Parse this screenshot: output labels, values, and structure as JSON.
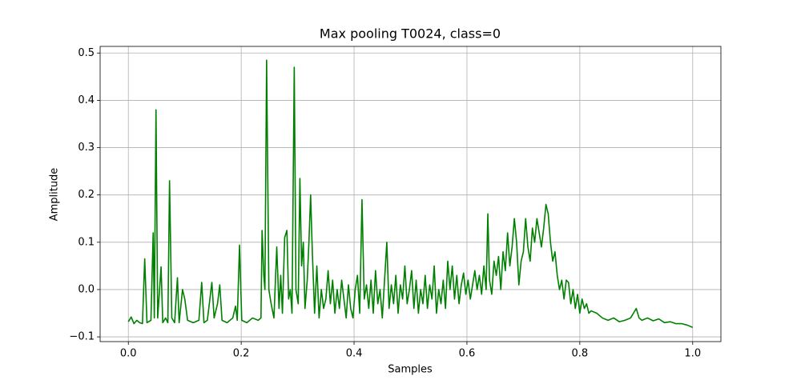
{
  "chart_data": {
    "type": "line",
    "title": "Max pooling T0024, class=0",
    "xlabel": "Samples",
    "ylabel": "Amplitude",
    "color": "#008000",
    "grid": true,
    "xlim": [
      -0.05,
      1.05
    ],
    "ylim": [
      -0.11,
      0.514
    ],
    "xticks": [
      {
        "value": 0,
        "label": "0.0"
      },
      0.2,
      0.4,
      0.6,
      0.8,
      {
        "value": 1,
        "label": "1.0"
      }
    ],
    "yticks": [
      {
        "value": -0.1,
        "label": "−0.1"
      },
      {
        "value": 0,
        "label": "0.0"
      },
      0.1,
      0.2,
      0.3,
      0.4,
      0.5
    ],
    "x": [
      0,
      0.005,
      0.01,
      0.015,
      0.02,
      0.025,
      0.029,
      0.033,
      0.04,
      0.044,
      0.046,
      0.049,
      0.052,
      0.058,
      0.061,
      0.066,
      0.07,
      0.073,
      0.077,
      0.082,
      0.087,
      0.09,
      0.096,
      0.1,
      0.105,
      0.115,
      0.125,
      0.13,
      0.134,
      0.14,
      0.148,
      0.152,
      0.158,
      0.162,
      0.166,
      0.175,
      0.185,
      0.19,
      0.193,
      0.197,
      0.201,
      0.21,
      0.22,
      0.23,
      0.235,
      0.237,
      0.24,
      0.242,
      0.245,
      0.249,
      0.253,
      0.258,
      0.263,
      0.267,
      0.27,
      0.273,
      0.277,
      0.281,
      0.284,
      0.287,
      0.29,
      0.294,
      0.297,
      0.301,
      0.304,
      0.307,
      0.31,
      0.313,
      0.317,
      0.32,
      0.323,
      0.326,
      0.33,
      0.334,
      0.338,
      0.342,
      0.346,
      0.35,
      0.354,
      0.358,
      0.362,
      0.366,
      0.37,
      0.374,
      0.378,
      0.382,
      0.386,
      0.39,
      0.394,
      0.398,
      0.402,
      0.406,
      0.41,
      0.414,
      0.418,
      0.422,
      0.426,
      0.43,
      0.434,
      0.438,
      0.442,
      0.446,
      0.45,
      0.454,
      0.458,
      0.462,
      0.466,
      0.47,
      0.474,
      0.478,
      0.482,
      0.486,
      0.49,
      0.494,
      0.498,
      0.502,
      0.506,
      0.51,
      0.514,
      0.518,
      0.522,
      0.526,
      0.53,
      0.534,
      0.538,
      0.542,
      0.546,
      0.55,
      0.554,
      0.558,
      0.562,
      0.566,
      0.57,
      0.574,
      0.578,
      0.582,
      0.586,
      0.59,
      0.594,
      0.598,
      0.602,
      0.606,
      0.61,
      0.614,
      0.618,
      0.622,
      0.626,
      0.63,
      0.634,
      0.637,
      0.64,
      0.644,
      0.648,
      0.652,
      0.656,
      0.66,
      0.664,
      0.668,
      0.672,
      0.676,
      0.68,
      0.684,
      0.688,
      0.692,
      0.696,
      0.7,
      0.704,
      0.708,
      0.712,
      0.716,
      0.72,
      0.724,
      0.728,
      0.732,
      0.736,
      0.74,
      0.744,
      0.748,
      0.752,
      0.756,
      0.76,
      0.764,
      0.768,
      0.772,
      0.776,
      0.78,
      0.784,
      0.788,
      0.792,
      0.796,
      0.8,
      0.804,
      0.808,
      0.812,
      0.816,
      0.82,
      0.83,
      0.84,
      0.85,
      0.86,
      0.87,
      0.88,
      0.89,
      0.9,
      0.905,
      0.91,
      0.92,
      0.93,
      0.94,
      0.95,
      0.96,
      0.97,
      0.98,
      0.99,
      1.0
    ],
    "values": [
      -0.068,
      -0.058,
      -0.072,
      -0.065,
      -0.07,
      -0.072,
      0.065,
      -0.07,
      -0.065,
      0.12,
      -0.06,
      0.38,
      -0.06,
      0.048,
      -0.07,
      -0.06,
      -0.07,
      0.23,
      -0.06,
      -0.07,
      0.025,
      -0.07,
      0.0,
      -0.02,
      -0.065,
      -0.07,
      -0.065,
      0.015,
      -0.07,
      -0.065,
      0.015,
      -0.06,
      -0.03,
      0.01,
      -0.065,
      -0.07,
      -0.06,
      -0.035,
      -0.065,
      0.094,
      -0.065,
      -0.07,
      -0.06,
      -0.065,
      -0.06,
      0.125,
      0.03,
      0.0,
      0.485,
      0.0,
      -0.03,
      -0.06,
      0.09,
      -0.04,
      0.03,
      -0.05,
      0.11,
      0.125,
      -0.02,
      0.0,
      -0.05,
      0.47,
      0.0,
      -0.03,
      0.235,
      0.05,
      0.1,
      -0.04,
      0.02,
      0.1,
      0.2,
      0.08,
      -0.05,
      0.05,
      -0.06,
      0.0,
      -0.04,
      -0.02,
      0.04,
      -0.03,
      0.02,
      -0.05,
      0.0,
      -0.04,
      0.02,
      -0.02,
      -0.06,
      0.01,
      -0.04,
      -0.06,
      0.0,
      0.03,
      -0.05,
      0.19,
      -0.02,
      0.01,
      -0.04,
      0.02,
      -0.05,
      0.04,
      -0.03,
      0.0,
      -0.06,
      0.02,
      0.1,
      -0.04,
      0.01,
      -0.03,
      0.03,
      -0.05,
      0.01,
      -0.02,
      0.05,
      -0.03,
      0.0,
      0.04,
      -0.04,
      0.02,
      -0.05,
      0.0,
      -0.03,
      0.03,
      -0.04,
      0.01,
      -0.02,
      0.05,
      -0.05,
      0.0,
      -0.03,
      0.02,
      -0.04,
      0.06,
      0.0,
      0.05,
      -0.02,
      0.03,
      -0.03,
      0.01,
      0.035,
      -0.01,
      0.02,
      -0.02,
      0.01,
      0.04,
      0.0,
      0.03,
      -0.01,
      0.05,
      0.0,
      0.16,
      0.02,
      -0.01,
      0.06,
      0.03,
      0.07,
      0.0,
      0.08,
      0.04,
      0.12,
      0.05,
      0.09,
      0.15,
      0.1,
      0.01,
      0.06,
      0.08,
      0.15,
      0.09,
      0.06,
      0.13,
      0.1,
      0.15,
      0.12,
      0.09,
      0.13,
      0.18,
      0.16,
      0.1,
      0.06,
      0.08,
      0.03,
      0.0,
      0.02,
      -0.02,
      0.02,
      0.015,
      -0.03,
      0.0,
      -0.04,
      -0.01,
      -0.05,
      -0.02,
      -0.04,
      -0.03,
      -0.05,
      -0.045,
      -0.05,
      -0.06,
      -0.065,
      -0.06,
      -0.068,
      -0.065,
      -0.06,
      -0.04,
      -0.06,
      -0.065,
      -0.06,
      -0.066,
      -0.062,
      -0.07,
      -0.068,
      -0.072,
      -0.072,
      -0.075,
      -0.08
    ]
  }
}
